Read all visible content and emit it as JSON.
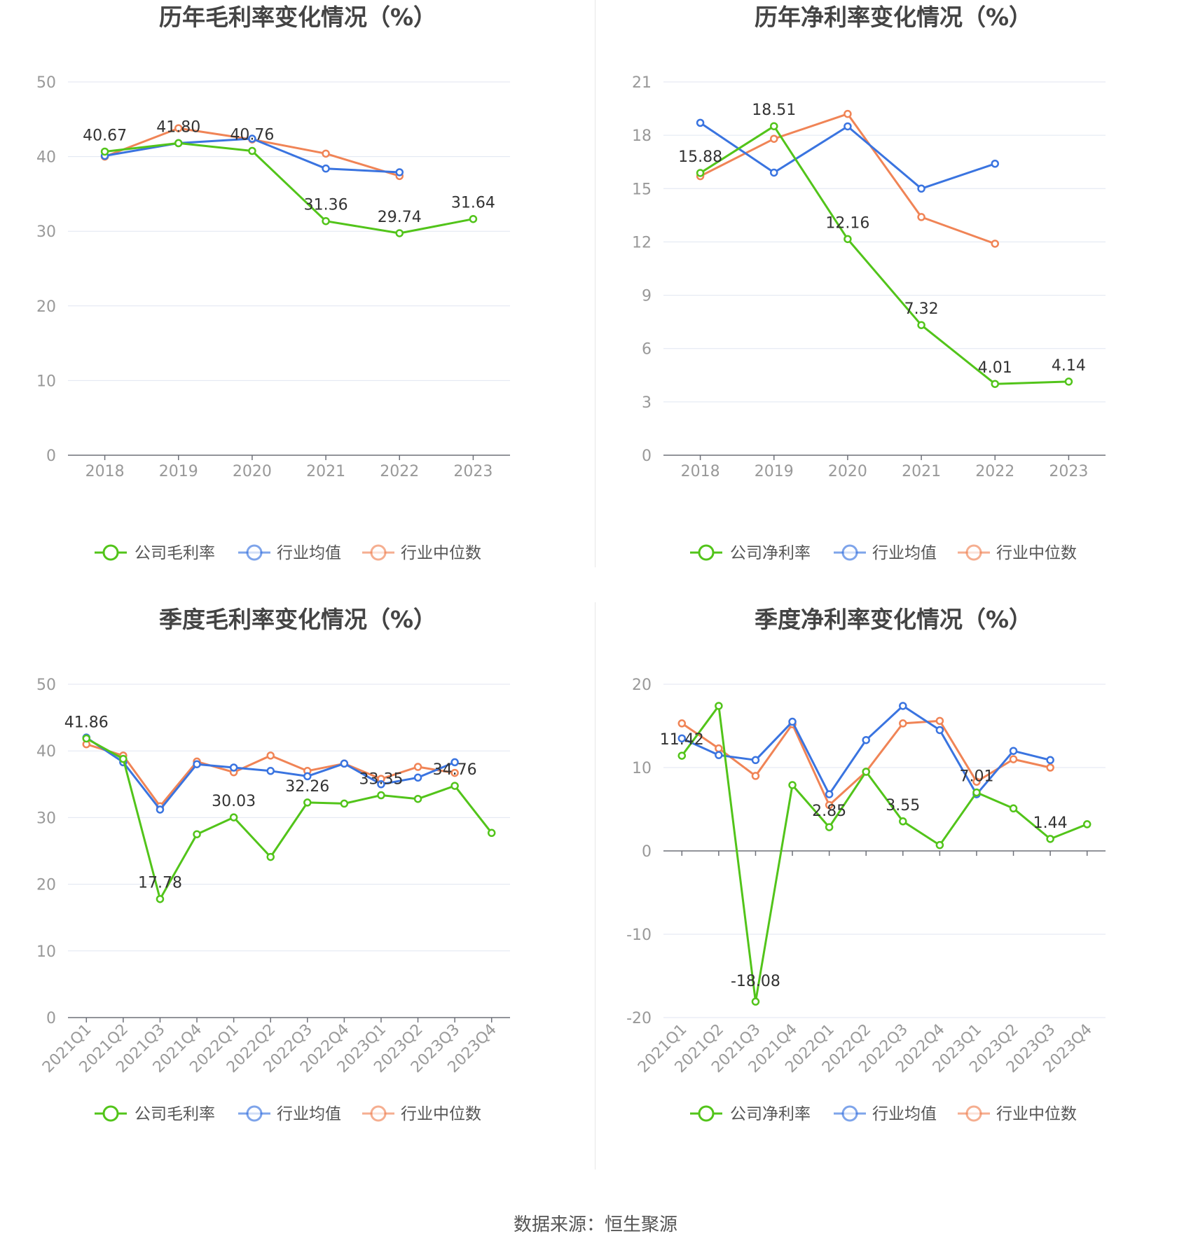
{
  "colors": {
    "company": "#52c41a",
    "avg": "#3a74e0",
    "median": "#f08456"
  },
  "source": "数据来源：恒生聚源",
  "chart_data": [
    {
      "type": "line",
      "title": "历年毛利率变化情况（%）",
      "categories": [
        "2018",
        "2019",
        "2020",
        "2021",
        "2022",
        "2023"
      ],
      "ylim": [
        0,
        50
      ],
      "yticks": [
        0,
        10,
        20,
        30,
        40,
        50
      ],
      "legend": [
        "公司毛利率",
        "行业均值",
        "行业中位数"
      ],
      "series": [
        {
          "name": "公司毛利率",
          "values": [
            40.67,
            41.8,
            40.76,
            31.36,
            29.74,
            31.64
          ],
          "labels": [
            "40.67",
            "41.80",
            "40.76",
            "31.36",
            "29.74",
            "31.64"
          ]
        },
        {
          "name": "行业均值",
          "values": [
            40.1,
            41.8,
            42.4,
            38.4,
            37.9,
            null
          ]
        },
        {
          "name": "行业中位数",
          "values": [
            40.0,
            43.8,
            42.3,
            40.4,
            37.4,
            null
          ]
        }
      ]
    },
    {
      "type": "line",
      "title": "历年净利率变化情况（%）",
      "categories": [
        "2018",
        "2019",
        "2020",
        "2021",
        "2022",
        "2023"
      ],
      "ylim": [
        0,
        21
      ],
      "yticks": [
        0,
        3,
        6,
        9,
        12,
        15,
        18,
        21
      ],
      "legend": [
        "公司净利率",
        "行业均值",
        "行业中位数"
      ],
      "series": [
        {
          "name": "公司净利率",
          "values": [
            15.88,
            18.51,
            12.16,
            7.32,
            4.01,
            4.14
          ],
          "labels": [
            "15.88",
            "18.51",
            "12.16",
            "7.32",
            "4.01",
            "4.14"
          ]
        },
        {
          "name": "行业均值",
          "values": [
            18.7,
            15.9,
            18.5,
            15.0,
            16.4,
            null
          ]
        },
        {
          "name": "行业中位数",
          "values": [
            15.7,
            17.8,
            19.2,
            13.4,
            11.9,
            null
          ]
        }
      ]
    },
    {
      "type": "line",
      "title": "季度毛利率变化情况（%）",
      "categories": [
        "2021Q1",
        "2021Q2",
        "2021Q3",
        "2021Q4",
        "2022Q1",
        "2022Q2",
        "2022Q3",
        "2022Q4",
        "2023Q1",
        "2023Q2",
        "2023Q3",
        "2023Q4"
      ],
      "ylim": [
        0,
        50
      ],
      "yticks": [
        0,
        10,
        20,
        30,
        40,
        50
      ],
      "legend": [
        "公司毛利率",
        "行业均值",
        "行业中位数"
      ],
      "series": [
        {
          "name": "公司毛利率",
          "values": [
            41.86,
            38.8,
            17.78,
            27.5,
            30.03,
            24.1,
            32.26,
            32.1,
            33.35,
            32.8,
            34.76,
            27.7
          ],
          "labels": [
            "41.86",
            null,
            "17.78",
            null,
            "30.03",
            null,
            "32.26",
            null,
            "33.35",
            null,
            "34.76",
            null
          ]
        },
        {
          "name": "行业均值",
          "values": [
            42.0,
            38.3,
            31.2,
            38.0,
            37.5,
            37.0,
            36.2,
            38.1,
            35.0,
            36.0,
            38.3,
            null
          ]
        },
        {
          "name": "行业中位数",
          "values": [
            41.0,
            39.3,
            31.7,
            38.4,
            36.8,
            39.3,
            37.0,
            38.1,
            35.8,
            37.6,
            36.7,
            null
          ]
        }
      ]
    },
    {
      "type": "line",
      "title": "季度净利率变化情况（%）",
      "categories": [
        "2021Q1",
        "2021Q2",
        "2021Q3",
        "2021Q4",
        "2022Q1",
        "2022Q2",
        "2022Q3",
        "2022Q4",
        "2023Q1",
        "2023Q2",
        "2023Q3",
        "2023Q4"
      ],
      "ylim": [
        -20,
        20
      ],
      "yticks": [
        -20,
        -10,
        0,
        10,
        20
      ],
      "legend": [
        "公司净利率",
        "行业均值",
        "行业中位数"
      ],
      "series": [
        {
          "name": "公司净利率",
          "values": [
            11.42,
            17.4,
            -18.08,
            7.9,
            2.85,
            9.5,
            3.55,
            0.7,
            7.01,
            5.1,
            1.44,
            3.2
          ],
          "labels": [
            "11.42",
            null,
            "-18.08",
            null,
            "2.85",
            null,
            "3.55",
            null,
            "7.01",
            null,
            "1.44",
            null
          ]
        },
        {
          "name": "行业均值",
          "values": [
            13.5,
            11.5,
            10.9,
            15.5,
            6.8,
            13.3,
            17.4,
            14.5,
            6.8,
            12.0,
            10.9,
            null
          ]
        },
        {
          "name": "行业中位数",
          "values": [
            15.3,
            12.3,
            9.0,
            15.2,
            5.5,
            9.5,
            15.3,
            15.6,
            8.3,
            11.0,
            10.0,
            null
          ]
        }
      ]
    }
  ]
}
